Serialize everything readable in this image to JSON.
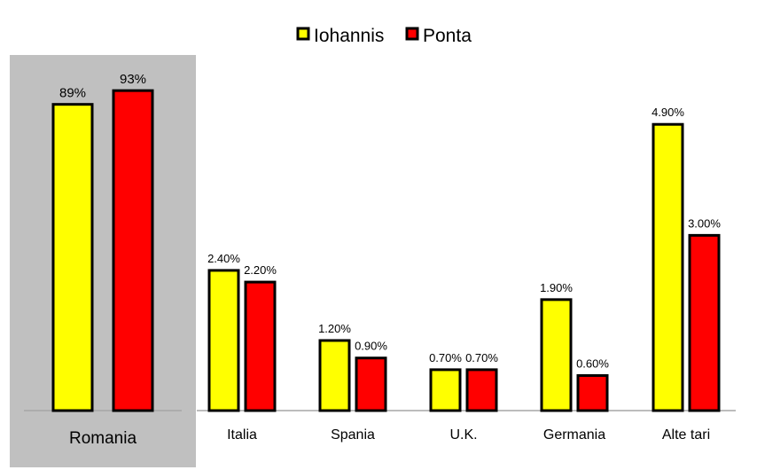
{
  "colors": {
    "iohannis": "#ffff00",
    "ponta": "#ff0000",
    "highlight_panel": "#c0c0c0",
    "baseline": "#a6a6a6",
    "bar_outline": "#000000"
  },
  "chart_data": [
    {
      "type": "bar",
      "categories": [
        "Romania"
      ],
      "series": [
        {
          "name": "Iohannis",
          "values": [
            89
          ],
          "labels": [
            "89%"
          ]
        },
        {
          "name": "Ponta",
          "values": [
            93
          ],
          "labels": [
            "93%"
          ]
        }
      ],
      "ylim": [
        0,
        100
      ],
      "highlighted": true
    },
    {
      "type": "bar",
      "categories": [
        "Italia",
        "Spania",
        "U.K.",
        "Germania",
        "Alte tari"
      ],
      "series": [
        {
          "name": "Iohannis",
          "values": [
            2.4,
            1.2,
            0.7,
            1.9,
            4.9
          ],
          "labels": [
            "2.40%",
            "1.20%",
            "0.70%",
            "1.90%",
            "4.90%"
          ]
        },
        {
          "name": "Ponta",
          "values": [
            2.2,
            0.9,
            0.7,
            0.6,
            3.0
          ],
          "labels": [
            "2.20%",
            "0.90%",
            "0.70%",
            "0.60%",
            "3.00%"
          ]
        }
      ],
      "ylim": [
        0,
        5.45
      ],
      "legend": {
        "position": "top-center",
        "entries": [
          {
            "label": "Iohannis",
            "color": "#ffff00"
          },
          {
            "label": "Ponta",
            "color": "#ff0000"
          }
        ]
      }
    }
  ]
}
